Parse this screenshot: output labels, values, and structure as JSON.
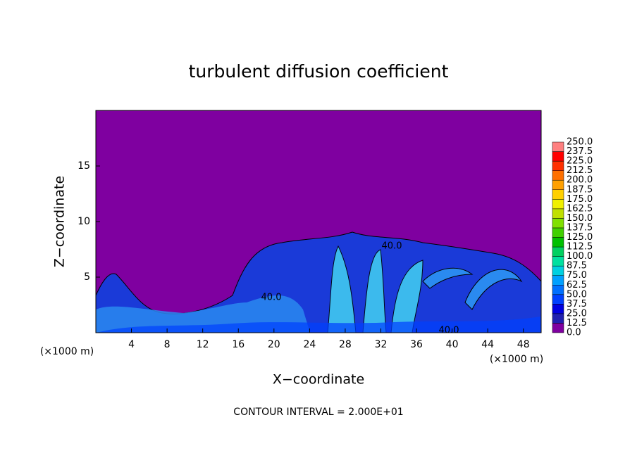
{
  "chart_data": {
    "type": "contour",
    "title": "turbulent diffusion coefficient",
    "x_label": "X−coordinate",
    "y_label": "Z−coordinate",
    "x_unit": "(×1000 m)",
    "xlim": [
      0,
      50
    ],
    "ylim": [
      0,
      20
    ],
    "xticks": [
      4,
      8,
      12,
      16,
      20,
      24,
      28,
      32,
      36,
      40,
      44,
      48
    ],
    "yticks": [
      5,
      10,
      15
    ],
    "colorbar": {
      "levels": [
        {
          "value": 0,
          "label": "0.0"
        },
        {
          "value": 12.5,
          "label": "12.5"
        },
        {
          "value": 25,
          "label": "25.0"
        },
        {
          "value": 37.5,
          "label": "37.5"
        },
        {
          "value": 50,
          "label": "50.0"
        },
        {
          "value": 62.5,
          "label": "62.5"
        },
        {
          "value": 75,
          "label": "75.0"
        },
        {
          "value": 87.5,
          "label": "87.5"
        },
        {
          "value": 100,
          "label": "100.0"
        },
        {
          "value": 112.5,
          "label": "112.5"
        },
        {
          "value": 125,
          "label": "125.0"
        },
        {
          "value": 137.5,
          "label": "137.5"
        },
        {
          "value": 150,
          "label": "150.0"
        },
        {
          "value": 162.5,
          "label": "162.5"
        },
        {
          "value": 175,
          "label": "175.0"
        },
        {
          "value": 187.5,
          "label": "187.5"
        },
        {
          "value": 200,
          "label": "200.0"
        },
        {
          "value": 212.5,
          "label": "212.5"
        },
        {
          "value": 225,
          "label": "225.0"
        },
        {
          "value": 237.5,
          "label": "237.5"
        },
        {
          "value": 250,
          "label": "250.0"
        }
      ],
      "colors": [
        "#7f00a0",
        "#2020b0",
        "#0000e0",
        "#0040ff",
        "#0070ff",
        "#00a0ff",
        "#00d0e0",
        "#00e0a0",
        "#00d060",
        "#00c000",
        "#40d000",
        "#80e000",
        "#c0e000",
        "#f0f000",
        "#ffd000",
        "#ffa000",
        "#ff7000",
        "#ff3000",
        "#ff0000",
        "#ff8080"
      ]
    },
    "contour_labels": [
      "40.0",
      "40.0",
      "40.0"
    ],
    "note": "CONTOUR INTERVAL = 2.000E+01"
  }
}
